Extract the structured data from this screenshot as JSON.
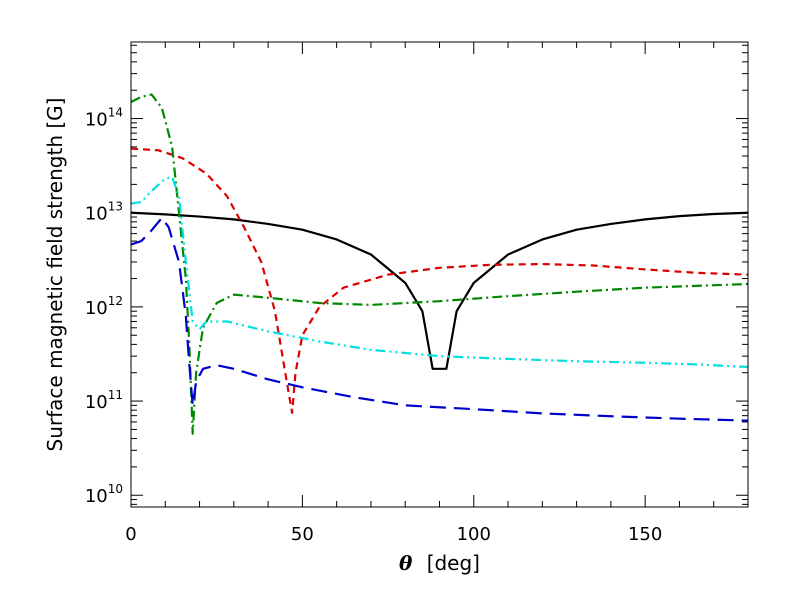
{
  "chart_data": {
    "type": "line",
    "title": "",
    "xlabel_symbol": "θ",
    "xlabel_unit": "[deg]",
    "ylabel": "Surface magnetic field strength [G]",
    "xlim": [
      0,
      180
    ],
    "ylim": [
      7500000000.0,
      650000000000000.0
    ],
    "yscale": "log",
    "x_ticks": [
      0,
      50,
      100,
      150
    ],
    "x_tick_labels": [
      "0",
      "50",
      "100",
      "150"
    ],
    "x_minor_step": 10,
    "y_ticks": [
      10000000000.0,
      100000000000.0,
      1000000000000.0,
      10000000000000.0,
      100000000000000.0
    ],
    "y_tick_mantissa": "10",
    "y_tick_exponents": [
      "10",
      "11",
      "12",
      "13",
      "14"
    ],
    "grid": false,
    "series": [
      {
        "name": "black solid",
        "color": "#000000",
        "style": "solid",
        "points": [
          [
            0,
            10000000000000.0
          ],
          [
            10,
            9600000000000.0
          ],
          [
            20,
            9100000000000.0
          ],
          [
            30,
            8500000000000.0
          ],
          [
            40,
            7600000000000.0
          ],
          [
            50,
            6600000000000.0
          ],
          [
            60,
            5200000000000.0
          ],
          [
            70,
            3600000000000.0
          ],
          [
            80,
            1800000000000.0
          ],
          [
            85,
            900000000000.0
          ],
          [
            88,
            220000000000.0
          ],
          [
            90,
            220000000000.0
          ],
          [
            92,
            220000000000.0
          ],
          [
            95,
            900000000000.0
          ],
          [
            100,
            1800000000000.0
          ],
          [
            110,
            3600000000000.0
          ],
          [
            120,
            5200000000000.0
          ],
          [
            130,
            6600000000000.0
          ],
          [
            140,
            7600000000000.0
          ],
          [
            150,
            8500000000000.0
          ],
          [
            160,
            9200000000000.0
          ],
          [
            170,
            9700000000000.0
          ],
          [
            180,
            10000000000000.0
          ]
        ]
      },
      {
        "name": "red dashed",
        "color": "#dd0000",
        "style": "dashed",
        "points": [
          [
            0,
            48000000000000.0
          ],
          [
            8,
            46000000000000.0
          ],
          [
            15,
            38000000000000.0
          ],
          [
            22,
            26000000000000.0
          ],
          [
            28,
            15000000000000.0
          ],
          [
            33,
            7000000000000.0
          ],
          [
            38,
            3000000000000.0
          ],
          [
            42,
            900000000000.0
          ],
          [
            45,
            200000000000.0
          ],
          [
            47,
            75000000000.0
          ],
          [
            48,
            200000000000.0
          ],
          [
            50,
            500000000000.0
          ],
          [
            55,
            1000000000000.0
          ],
          [
            62,
            1600000000000.0
          ],
          [
            75,
            2200000000000.0
          ],
          [
            90,
            2600000000000.0
          ],
          [
            105,
            2800000000000.0
          ],
          [
            120,
            2850000000000.0
          ],
          [
            135,
            2750000000000.0
          ],
          [
            150,
            2500000000000.0
          ],
          [
            165,
            2300000000000.0
          ],
          [
            180,
            2200000000000.0
          ]
        ]
      },
      {
        "name": "green dash-dot",
        "color": "#008800",
        "style": "dashdot",
        "points": [
          [
            0,
            150000000000000.0
          ],
          [
            3,
            170000000000000.0
          ],
          [
            6,
            180000000000000.0
          ],
          [
            9,
            130000000000000.0
          ],
          [
            12,
            50000000000000.0
          ],
          [
            14,
            10000000000000.0
          ],
          [
            16,
            2000000000000.0
          ],
          [
            17,
            400000000000.0
          ],
          [
            18,
            45000000000.0
          ],
          [
            19,
            200000000000.0
          ],
          [
            21,
            600000000000.0
          ],
          [
            25,
            1100000000000.0
          ],
          [
            30,
            1350000000000.0
          ],
          [
            40,
            1250000000000.0
          ],
          [
            55,
            1100000000000.0
          ],
          [
            70,
            1050000000000.0
          ],
          [
            90,
            1150000000000.0
          ],
          [
            110,
            1300000000000.0
          ],
          [
            130,
            1450000000000.0
          ],
          [
            150,
            1600000000000.0
          ],
          [
            180,
            1750000000000.0
          ]
        ]
      },
      {
        "name": "cyan dash-dot-dot",
        "color": "#00e0e0",
        "style": "dashdotdot",
        "points": [
          [
            0,
            12500000000000.0
          ],
          [
            3,
            13000000000000.0
          ],
          [
            6,
            17000000000000.0
          ],
          [
            10,
            23000000000000.0
          ],
          [
            12,
            24000000000000.0
          ],
          [
            14,
            15000000000000.0
          ],
          [
            16,
            3000000000000.0
          ],
          [
            18,
            700000000000.0
          ],
          [
            20,
            580000000000.0
          ],
          [
            22,
            700000000000.0
          ],
          [
            28,
            700000000000.0
          ],
          [
            40,
            550000000000.0
          ],
          [
            55,
            430000000000.0
          ],
          [
            70,
            350000000000.0
          ],
          [
            90,
            300000000000.0
          ],
          [
            110,
            280000000000.0
          ],
          [
            130,
            265000000000.0
          ],
          [
            150,
            255000000000.0
          ],
          [
            165,
            245000000000.0
          ],
          [
            180,
            230000000000.0
          ]
        ]
      },
      {
        "name": "blue long-dashed",
        "color": "#0000cc",
        "style": "longdash",
        "points": [
          [
            0,
            4600000000000.0
          ],
          [
            3,
            5000000000000.0
          ],
          [
            6,
            6500000000000.0
          ],
          [
            9,
            8800000000000.0
          ],
          [
            11,
            7000000000000.0
          ],
          [
            14,
            3000000000000.0
          ],
          [
            16,
            800000000000.0
          ],
          [
            17,
            250000000000.0
          ],
          [
            18,
            90000000000.0
          ],
          [
            19,
            160000000000.0
          ],
          [
            21,
            220000000000.0
          ],
          [
            25,
            240000000000.0
          ],
          [
            30,
            220000000000.0
          ],
          [
            40,
            170000000000.0
          ],
          [
            50,
            140000000000.0
          ],
          [
            65,
            110000000000.0
          ],
          [
            80,
            90000000000.0
          ],
          [
            100,
            82000000000.0
          ],
          [
            120,
            74000000000.0
          ],
          [
            140,
            69000000000.0
          ],
          [
            160,
            65000000000.0
          ],
          [
            180,
            62000000000.0
          ]
        ]
      }
    ]
  }
}
